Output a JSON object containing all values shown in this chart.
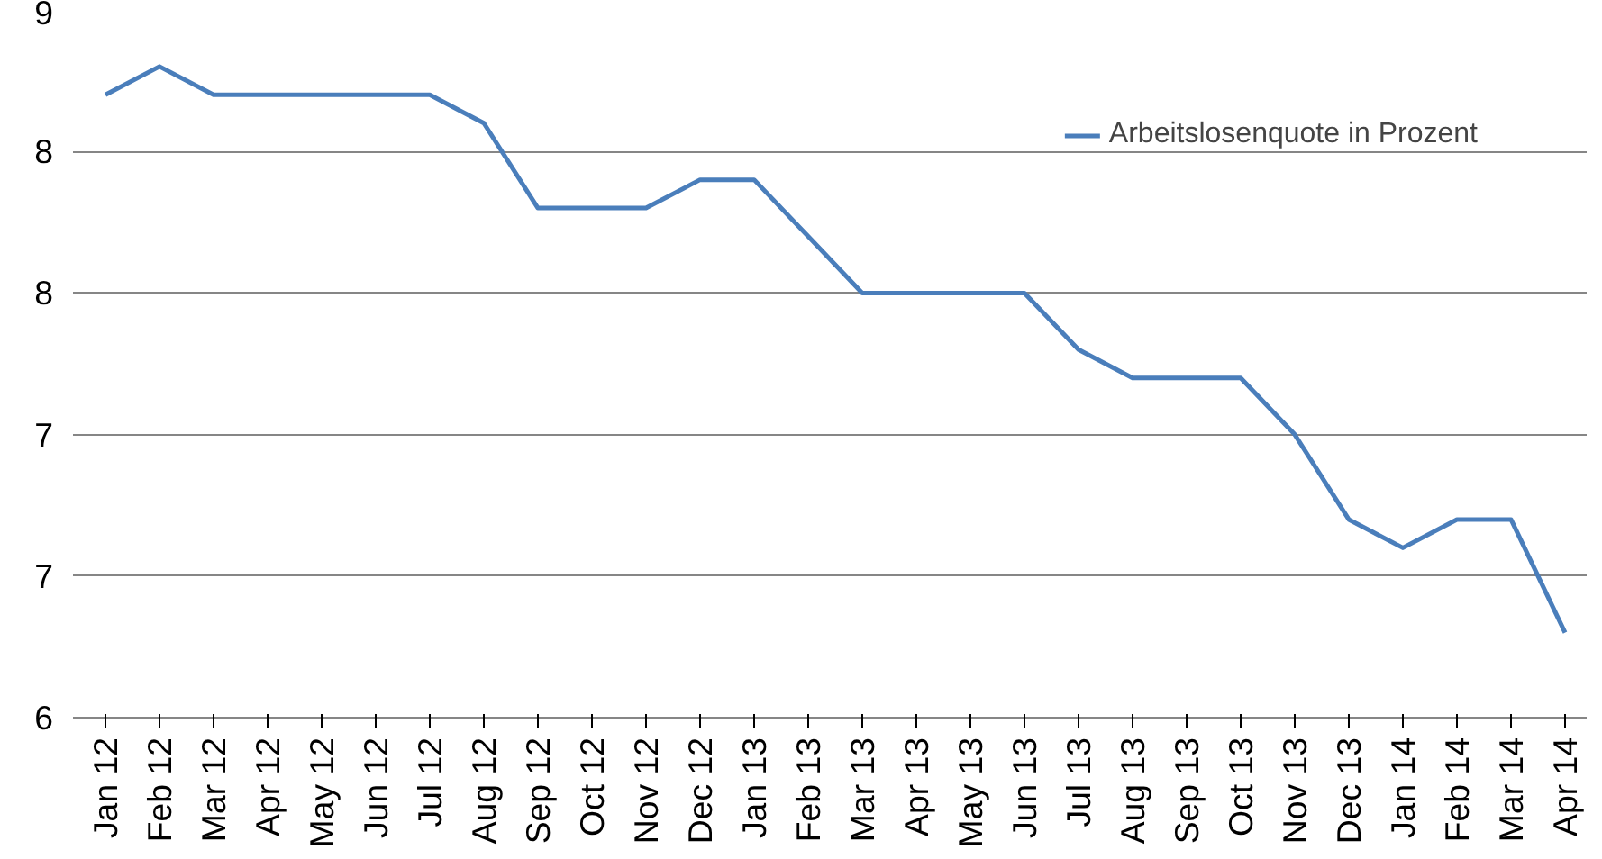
{
  "chart_data": {
    "type": "line",
    "categories": [
      "Jan 12",
      "Feb 12",
      "Mar 12",
      "Apr 12",
      "May 12",
      "Jun 12",
      "Jul 12",
      "Aug 12",
      "Sep 12",
      "Oct 12",
      "Nov 12",
      "Dec 12",
      "Jan 13",
      "Feb 13",
      "Mar 13",
      "Apr 13",
      "May 13",
      "Jun 13",
      "Jul 13",
      "Aug 13",
      "Sep 13",
      "Oct 13",
      "Nov 13",
      "Dec 13",
      "Jan 14",
      "Feb 14",
      "Mar 14",
      "Apr 14"
    ],
    "series": [
      {
        "name": "Arbeitslosenquote in Prozent",
        "color": "#4a7ebb",
        "values": [
          8.64,
          8.76,
          8.64,
          8.64,
          8.64,
          8.64,
          8.64,
          8.52,
          8.16,
          8.16,
          8.16,
          8.28,
          8.28,
          8.04,
          7.8,
          7.8,
          7.8,
          7.8,
          7.56,
          7.44,
          7.44,
          7.44,
          7.2,
          6.84,
          6.72,
          6.84,
          6.84,
          6.36
        ]
      }
    ],
    "ylim": [
      6,
      9
    ],
    "yticks": [
      6,
      {
        "value": 6.6,
        "label": "7"
      },
      {
        "value": 7.2,
        "label": "7"
      },
      {
        "value": 7.8,
        "label": "8"
      },
      {
        "value": 8.4,
        "label": "8"
      },
      9
    ],
    "grid": "y",
    "legend": "top right",
    "marker": "none",
    "line_style": "solid"
  }
}
